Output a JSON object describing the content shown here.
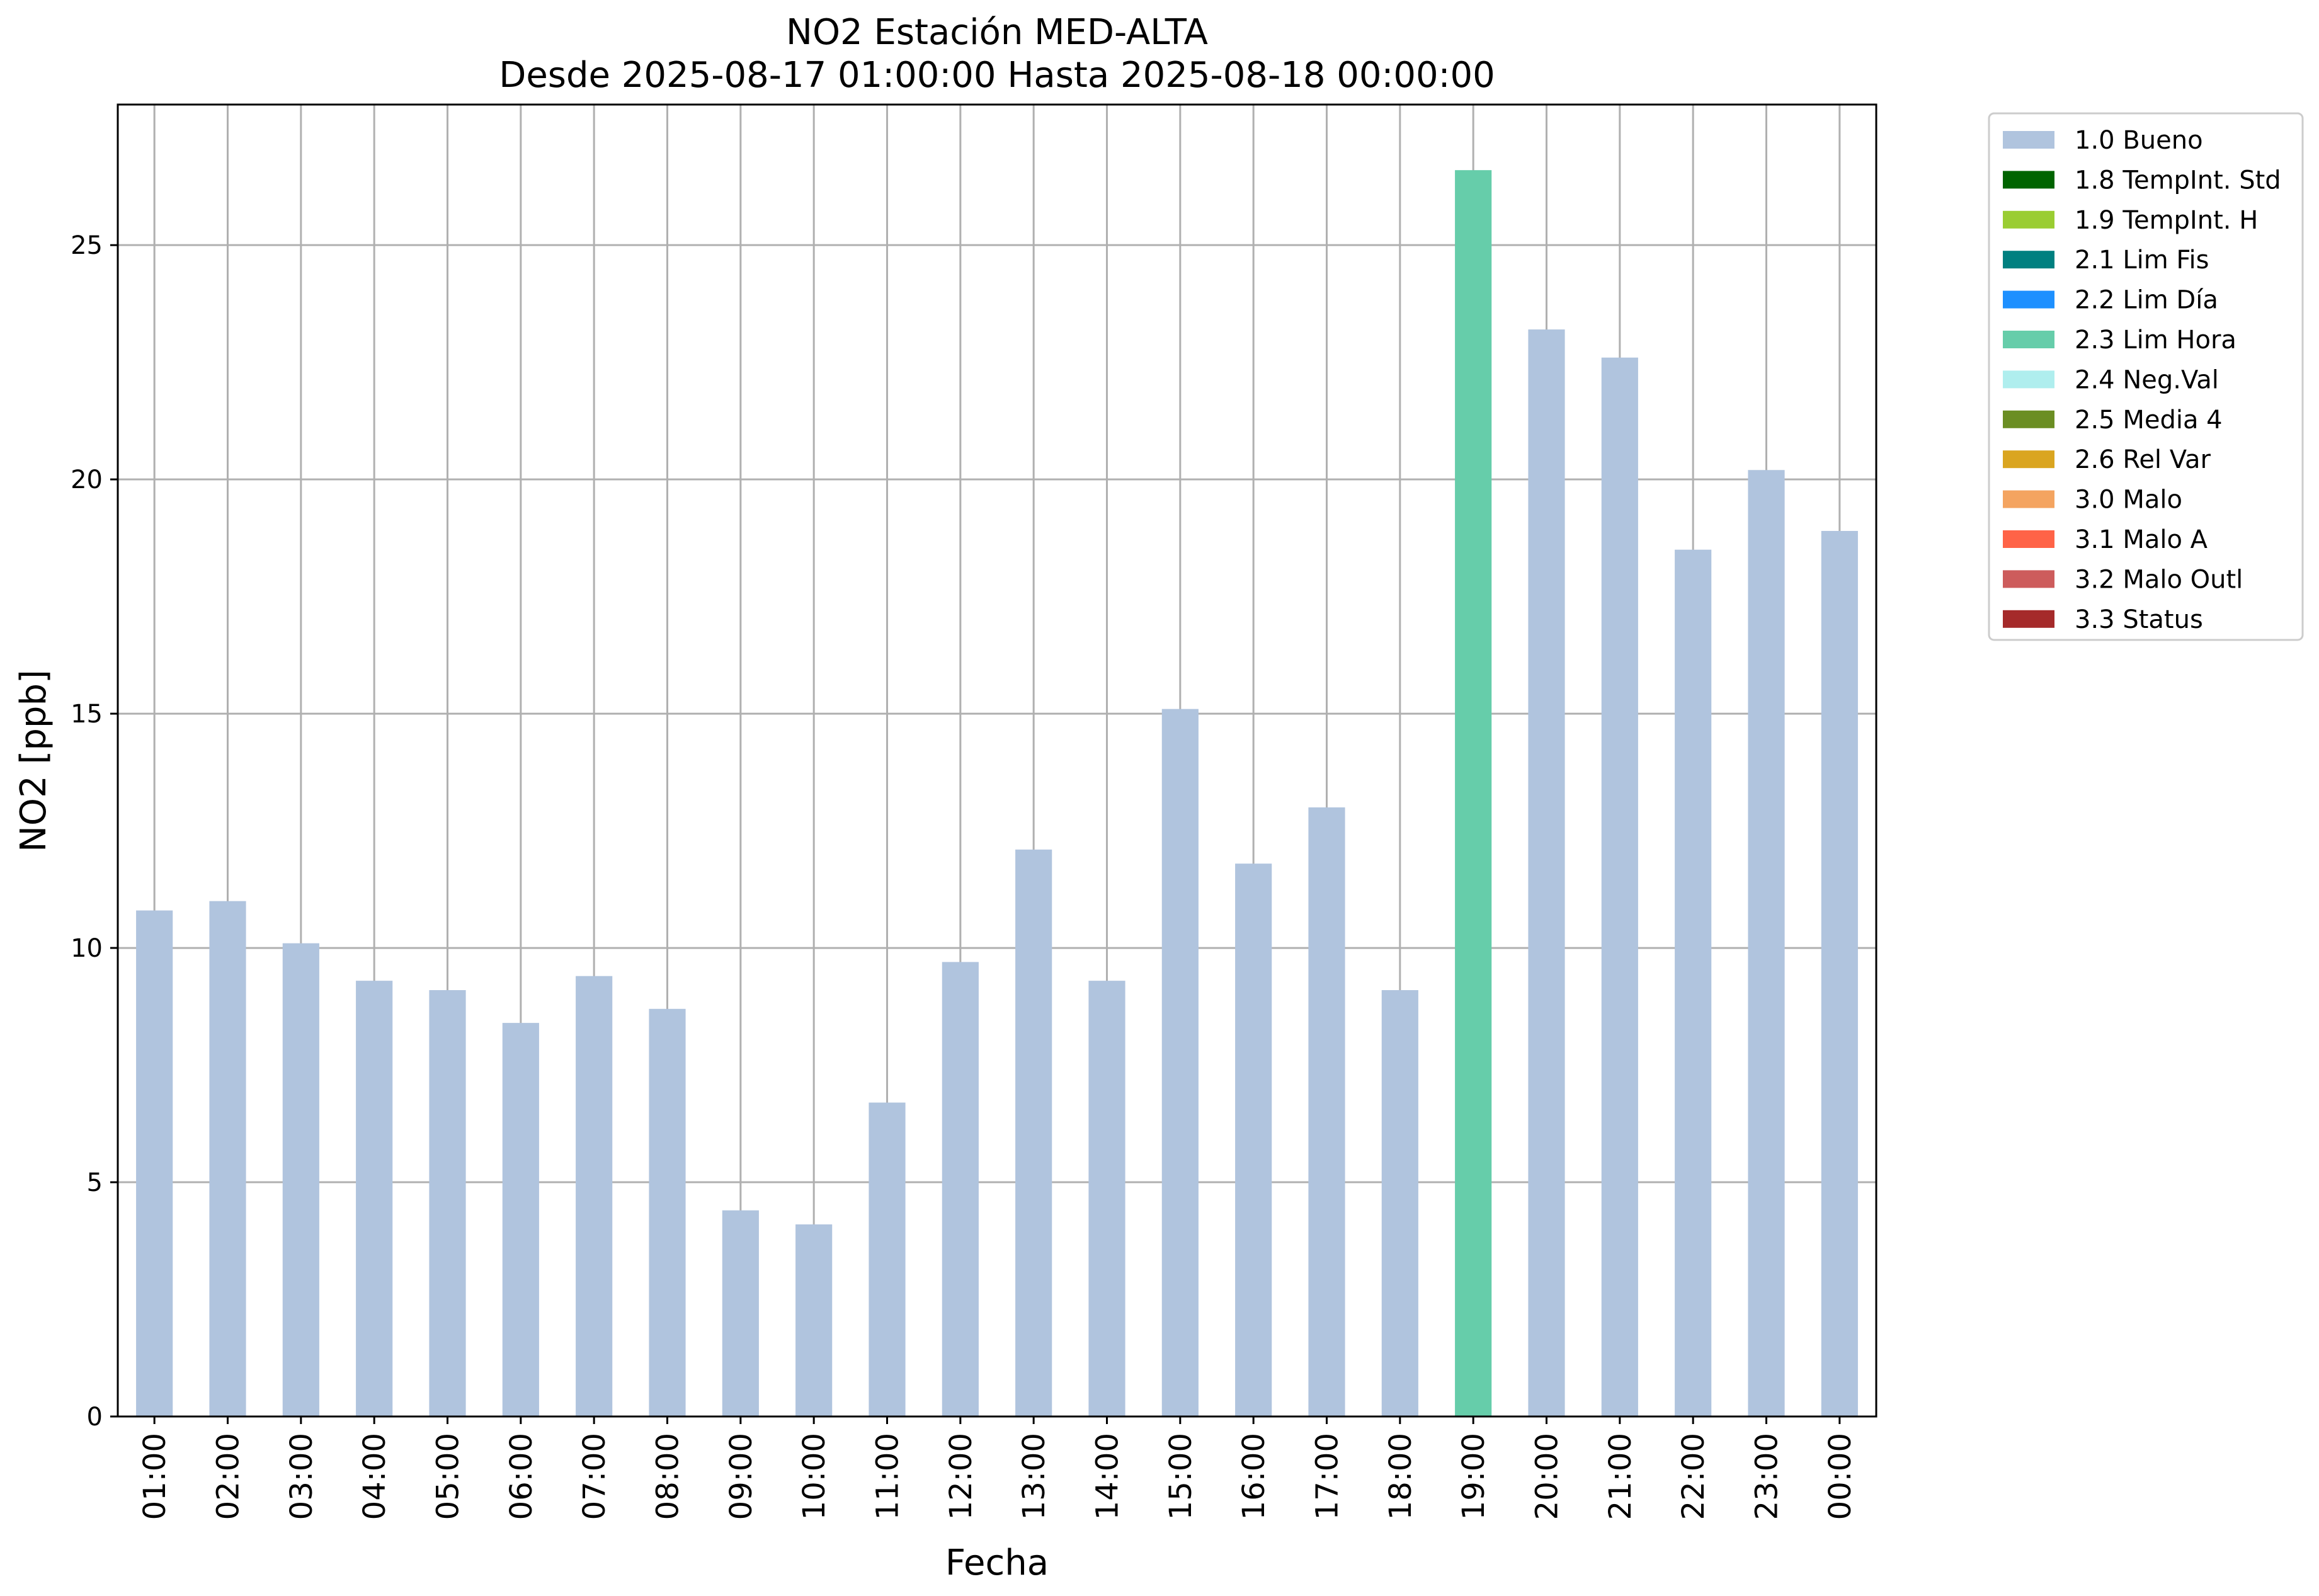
{
  "chart_data": {
    "type": "bar",
    "title": "NO2 Estación MED-ALTA",
    "subtitle": "Desde 2025-08-17 01:00:00 Hasta 2025-08-18 00:00:00",
    "xlabel": "Fecha",
    "ylabel": "NO2 [ppb]",
    "ylim": [
      0,
      28
    ],
    "yticks": [
      "0",
      "5",
      "10",
      "15",
      "20",
      "25"
    ],
    "grid": true,
    "legend_position": "outside-top-right",
    "categories": [
      "01:00",
      "02:00",
      "03:00",
      "04:00",
      "05:00",
      "06:00",
      "07:00",
      "08:00",
      "09:00",
      "10:00",
      "11:00",
      "12:00",
      "13:00",
      "14:00",
      "15:00",
      "16:00",
      "17:00",
      "18:00",
      "19:00",
      "20:00",
      "21:00",
      "22:00",
      "23:00",
      "00:00"
    ],
    "values": [
      10.8,
      11.0,
      10.1,
      9.3,
      9.1,
      8.4,
      9.4,
      8.7,
      4.4,
      4.1,
      6.7,
      9.7,
      12.1,
      9.3,
      15.1,
      11.8,
      13.0,
      9.1,
      26.6,
      23.2,
      22.6,
      18.5,
      20.2,
      18.9
    ],
    "flags": [
      "1.0 Bueno",
      "1.0 Bueno",
      "1.0 Bueno",
      "1.0 Bueno",
      "1.0 Bueno",
      "1.0 Bueno",
      "1.0 Bueno",
      "1.0 Bueno",
      "1.0 Bueno",
      "1.0 Bueno",
      "1.0 Bueno",
      "1.0 Bueno",
      "1.0 Bueno",
      "1.0 Bueno",
      "1.0 Bueno",
      "1.0 Bueno",
      "1.0 Bueno",
      "1.0 Bueno",
      "2.3 Lim Hora",
      "1.0 Bueno",
      "1.0 Bueno",
      "1.0 Bueno",
      "1.0 Bueno",
      "1.0 Bueno"
    ],
    "legend": [
      {
        "label": "1.0 Bueno",
        "color": "#b0c4de"
      },
      {
        "label": "1.8 TempInt. Std",
        "color": "#006400"
      },
      {
        "label": "1.9 TempInt. H",
        "color": "#9acd32"
      },
      {
        "label": "2.1 Lim Fis",
        "color": "#008080"
      },
      {
        "label": "2.2 Lim Día",
        "color": "#1e90ff"
      },
      {
        "label": "2.3 Lim Hora",
        "color": "#66cdaa"
      },
      {
        "label": "2.4 Neg.Val",
        "color": "#afeeee"
      },
      {
        "label": "2.5 Media 4",
        "color": "#6b8e23"
      },
      {
        "label": "2.6 Rel Var",
        "color": "#daa520"
      },
      {
        "label": "3.0 Malo",
        "color": "#f4a460"
      },
      {
        "label": "3.1 Malo A",
        "color": "#ff6347"
      },
      {
        "label": "3.2 Malo Outl",
        "color": "#cd5c5c"
      },
      {
        "label": "3.3 Status",
        "color": "#a52a2a"
      }
    ]
  }
}
